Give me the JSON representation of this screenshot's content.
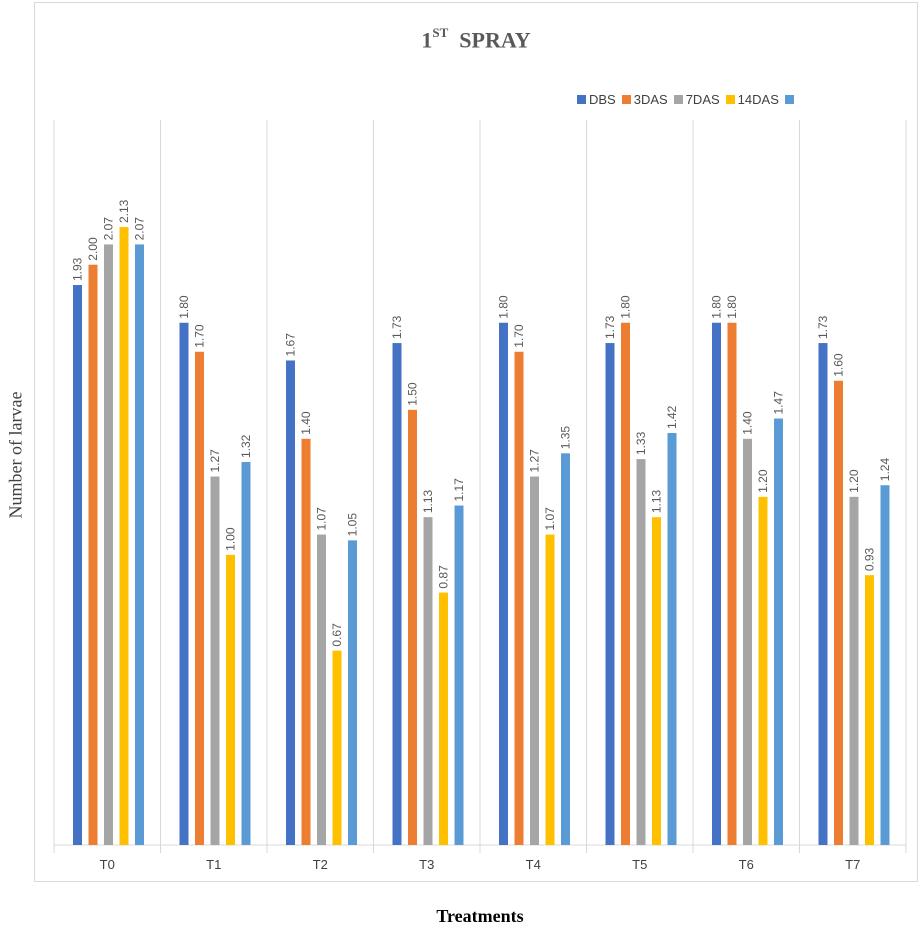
{
  "chart_data": {
    "type": "bar",
    "title_main": "1",
    "title_sup": "ST",
    "title_rest": "SPRAY",
    "xlabel": "Treatments",
    "ylabel": "Number of larvae",
    "categories": [
      "T0",
      "T1",
      "T2",
      "T3",
      "T4",
      "T5",
      "T6",
      "T7"
    ],
    "series": [
      {
        "name": "DBS",
        "color": "#4472c4",
        "values": [
          1.93,
          1.8,
          1.67,
          1.73,
          1.8,
          1.73,
          1.8,
          1.73
        ],
        "labels": [
          "1.93",
          "1.80",
          "1.67",
          "1.73",
          "1.80",
          "1.73",
          "1.80",
          "1.73"
        ]
      },
      {
        "name": "3DAS",
        "color": "#ed7d31",
        "values": [
          2.0,
          1.7,
          1.4,
          1.5,
          1.7,
          1.8,
          1.8,
          1.6
        ],
        "labels": [
          "2.00",
          "1.70",
          "1.40",
          "1.50",
          "1.70",
          "1.80",
          "1.80",
          "1.60"
        ]
      },
      {
        "name": "7DAS",
        "color": "#a5a5a5",
        "values": [
          2.07,
          1.27,
          1.07,
          1.13,
          1.27,
          1.33,
          1.4,
          1.2
        ],
        "labels": [
          "2.07",
          "1.27",
          "1.07",
          "1.13",
          "1.27",
          "1.33",
          "1.40",
          "1.20"
        ]
      },
      {
        "name": "14DAS",
        "color": "#ffc000",
        "values": [
          2.13,
          1.0,
          0.67,
          0.87,
          1.07,
          1.13,
          1.2,
          0.93
        ],
        "labels": [
          "2.13",
          "1.00",
          "0.67",
          "0.87",
          "1.07",
          "1.13",
          "1.20",
          "0.93"
        ]
      },
      {
        "name": "",
        "color": "#5b9bd5",
        "values": [
          2.07,
          1.32,
          1.05,
          1.17,
          1.35,
          1.42,
          1.47,
          1.24
        ],
        "labels": [
          "2.07",
          "1.32",
          "1.05",
          "1.17",
          "1.35",
          "1.42",
          "1.47",
          "1.24"
        ]
      }
    ],
    "ylim": [
      0,
      2.13
    ],
    "grid": "vertical category separators",
    "legend_position": "top-right"
  }
}
